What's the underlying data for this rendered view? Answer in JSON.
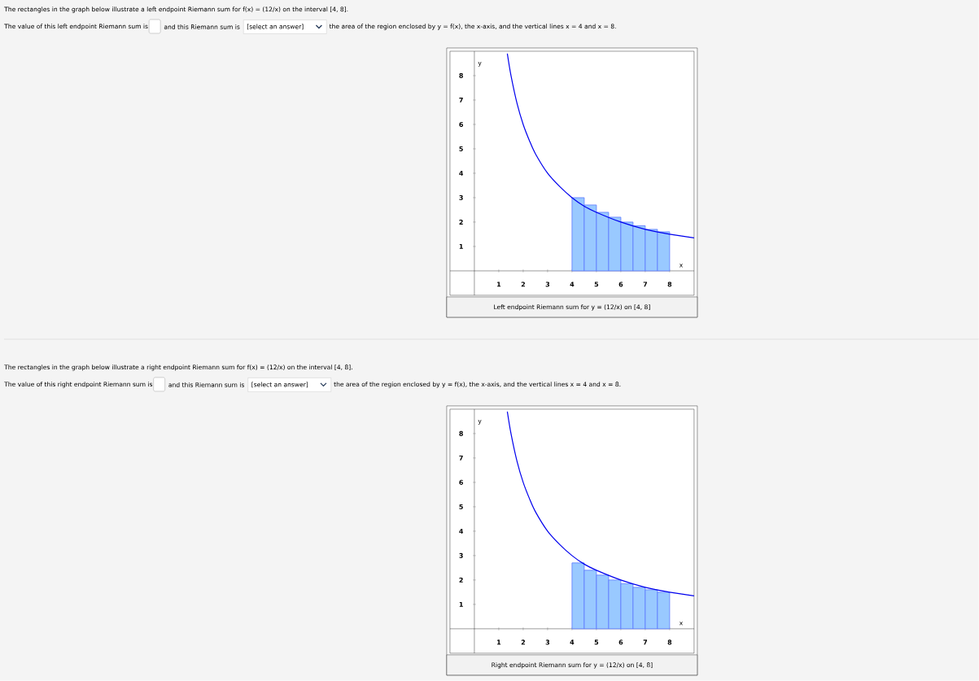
{
  "chart_data": [
    {
      "type": "bar",
      "title": "Left endpoint Riemann sum for y = (12/x) on [4, 8]",
      "xlabel": "x",
      "ylabel": "y",
      "annotations": [
        "The rectangles in the graph below illustrate a left endpoint Riemann sum for f(x) = (12/x) on the interval [4, 8].",
        "The value of this left endpoint Riemann sum is",
        "and this Riemann sum is",
        "[select an answer]",
        "the area of the region enclosed by y = f(x), the x-axis, and the vertical lines x = 4 and x = 8."
      ],
      "xlim": [
        -1,
        9
      ],
      "ylim": [
        -1,
        9
      ],
      "xticks": [
        1,
        2,
        3,
        4,
        5,
        6,
        7,
        8
      ],
      "yticks": [
        1,
        2,
        3,
        4,
        5,
        6,
        7,
        8
      ],
      "series": [
        {
          "color": "#99c9ff",
          "x": [
            4.25,
            4.75,
            5.25,
            5.75,
            6.25,
            6.75,
            7.25,
            7.75
          ],
          "values": [
            3,
            2.7,
            2.4,
            2.2,
            2,
            1.85,
            1.7,
            1.6
          ]
        },
        {
          "type": "line",
          "color": "#0000ee",
          "x": [
            1.35,
            1.5,
            1.75,
            2,
            2.25,
            2.5,
            3,
            3.5,
            4,
            4.5,
            5,
            6,
            7,
            8,
            9
          ],
          "values": [
            8.9,
            8,
            6.85,
            6,
            5.35,
            4.8,
            4,
            3.45,
            3,
            2.65,
            2.4,
            2,
            1.7,
            1.5,
            1.35
          ]
        }
      ]
    },
    {
      "type": "bar",
      "title": "Right endpoint Riemann sum for y = (12/x) on [4, 8]",
      "xlabel": "x",
      "ylabel": "y",
      "annotations": [
        "The rectangles in the graph below illustrate a right endpoint Riemann sum for f(x) = (12/x) on the interval [4, 8].",
        "The value of this right endpoint Riemann sum is",
        "and this Riemann sum is",
        "[select an answer]",
        "the area of the region enclosed by y = f(x), the x-axis, and the vertical lines x = 4 and x = 8."
      ],
      "xlim": [
        -1,
        9
      ],
      "ylim": [
        -1,
        9
      ],
      "xticks": [
        1,
        2,
        3,
        4,
        5,
        6,
        7,
        8
      ],
      "yticks": [
        1,
        2,
        3,
        4,
        5,
        6,
        7,
        8
      ],
      "series": [
        {
          "color": "#99c9ff",
          "x": [
            4.25,
            4.75,
            5.25,
            5.75,
            6.25,
            6.75,
            7.25,
            7.75
          ],
          "values": [
            2.7,
            2.4,
            2.2,
            2,
            1.85,
            1.7,
            1.6,
            1.5
          ]
        },
        {
          "type": "line",
          "color": "#0000ee",
          "x": [
            1.35,
            1.5,
            1.75,
            2,
            2.25,
            2.5,
            3,
            3.5,
            4,
            4.5,
            5,
            6,
            7,
            8,
            9
          ],
          "values": [
            8.9,
            8,
            6.85,
            6,
            5.35,
            4.8,
            4,
            3.45,
            3,
            2.65,
            2.4,
            2,
            1.7,
            1.5,
            1.35
          ]
        }
      ]
    }
  ]
}
